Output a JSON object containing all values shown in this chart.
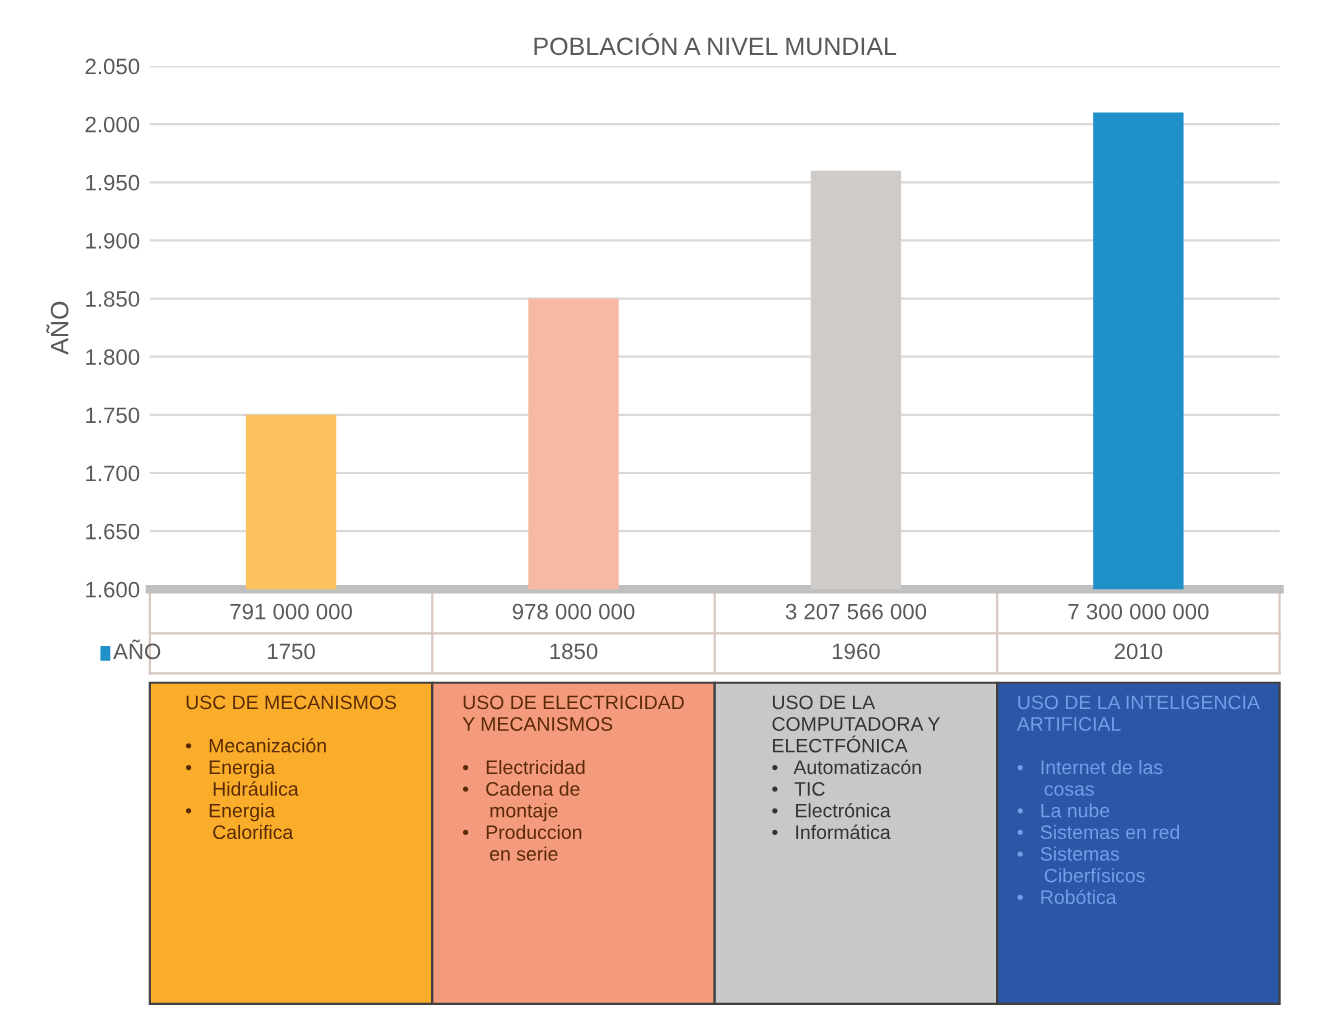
{
  "chart_data": {
    "type": "bar",
    "title": "POBLACIÓN A NIVEL MUNDIAL",
    "ylabel": "AÑO",
    "categories": [
      "791 000 000",
      "978 000 000",
      "3 207 566 000",
      "7 300 000 000"
    ],
    "series": [
      {
        "name": "AÑO",
        "color": "#1f91c8",
        "colors": [
          "#fcc25e",
          "#f7b9a1",
          "#cfcbc9",
          "#1f91c8"
        ],
        "values": [
          1750,
          1850,
          1960,
          2010
        ]
      }
    ],
    "ylim": [
      1600,
      2050
    ],
    "yticks": [
      {
        "value": 1600,
        "label": "1.600"
      },
      {
        "value": 1650,
        "label": "1.650"
      },
      {
        "value": 1700,
        "label": "1.700"
      },
      {
        "value": 1750,
        "label": "1.750"
      },
      {
        "value": 1800,
        "label": "1.800"
      },
      {
        "value": 1850,
        "label": "1.850"
      },
      {
        "value": 1900,
        "label": "1.900"
      },
      {
        "value": 1950,
        "label": "1.950"
      },
      {
        "value": 2000,
        "label": "2.000"
      },
      {
        "value": 2050,
        "label": "2.050"
      }
    ],
    "grid": "y",
    "data_labels": true,
    "legend": "bottom left",
    "annotations": [
      "USC DE MECANISMOS\n\n•   Mecanización\n•   Energia\n     Hidráulica\n•   Energia\n     Calorifica",
      "USO DE ELECTRICIDAD\nY MECANISMOS\n\n•   Electricidad\n•   Cadena de\n     montaje\n•   Produccion\n     en serie",
      "USO DE LA\nCOMPUTADORA Y\nELECTFÓNICA\n•   Automatizacón\n•   TIC\n•   Electrónica\n•   Informática",
      "USO DE LA INTELIGENCIA\nARTIFICIAL\n\n•   Internet de las\n     cosas\n•   La nube\n•   Sistemas en red\n•   Sistemas\n     Ciberfísicos\n•   Robótica"
    ]
  }
}
